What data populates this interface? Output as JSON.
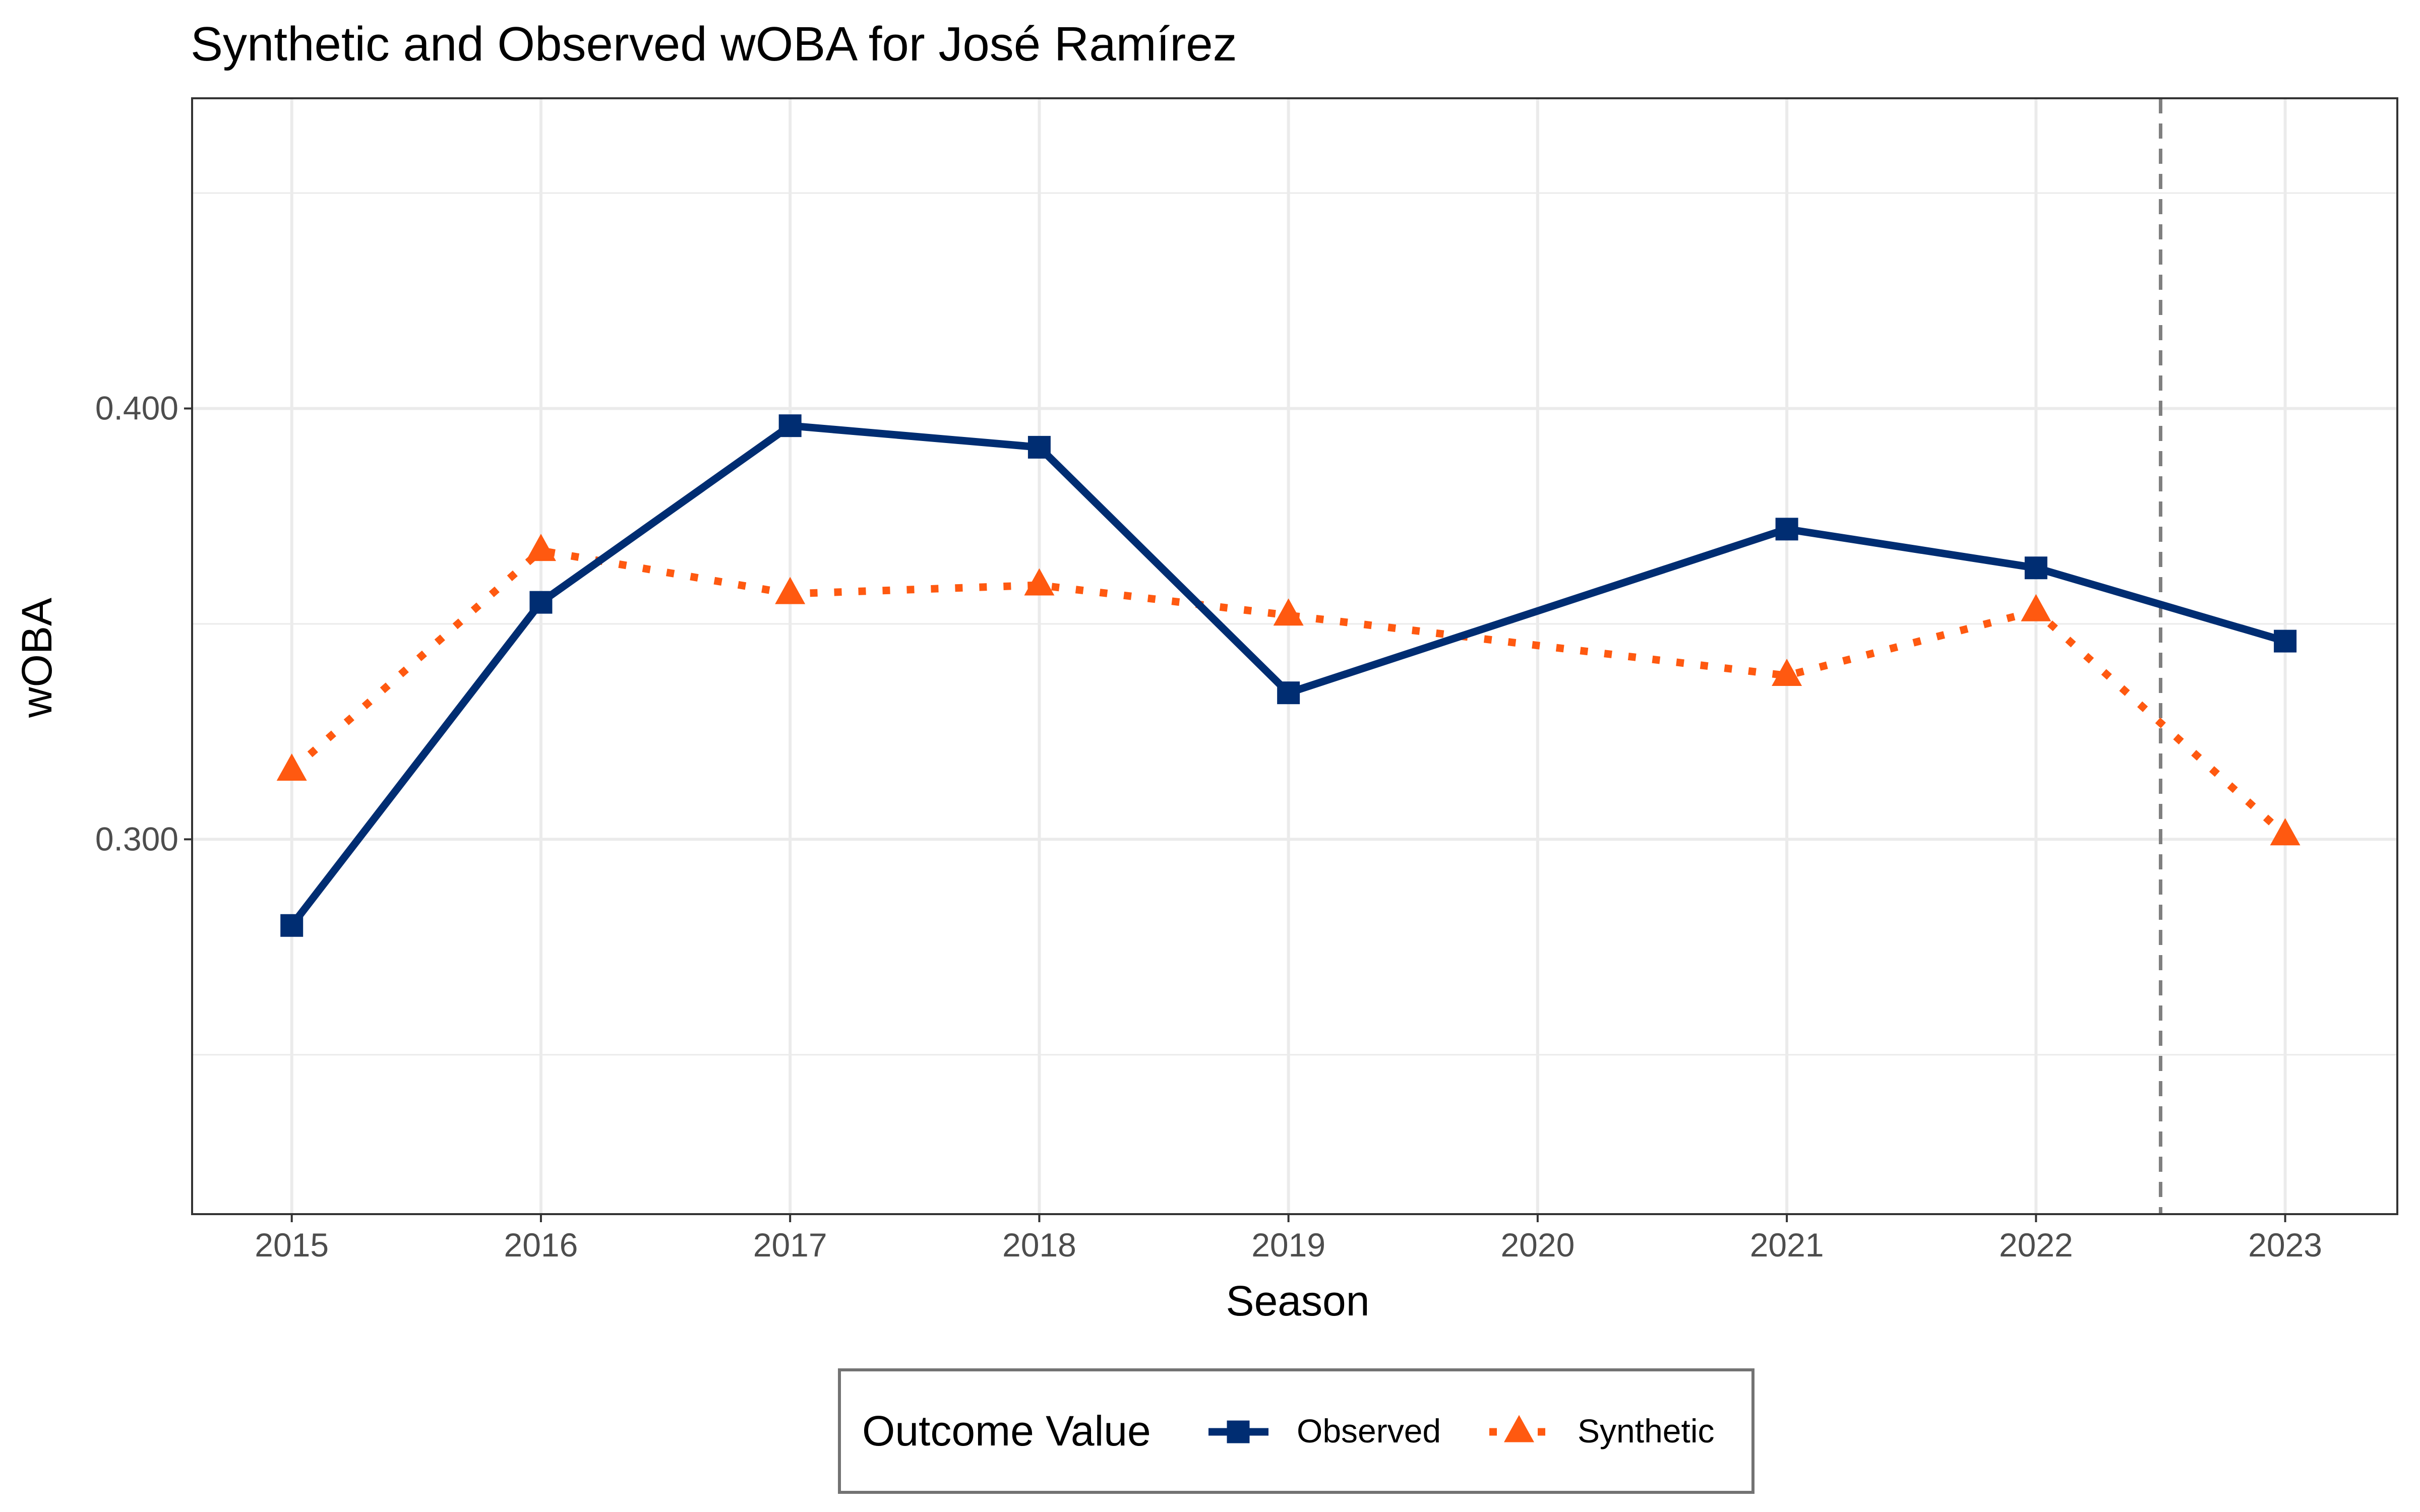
{
  "chart_data": {
    "type": "line",
    "title": "Synthetic and Observed wOBA for José Ramírez",
    "xlabel": "Season",
    "ylabel": "wOBA",
    "x": [
      2015,
      2016,
      2017,
      2018,
      2019,
      2020,
      2021,
      2022,
      2023
    ],
    "x_tick_labels": [
      "2015",
      "2016",
      "2017",
      "2018",
      "2019",
      "2020",
      "2021",
      "2022",
      "2023"
    ],
    "y_tick_labels": [
      "0.300",
      "0.400"
    ],
    "y_ticks": [
      0.3,
      0.4
    ],
    "ylim": [
      0.213,
      0.472
    ],
    "xlim": [
      2014.6,
      2023.45
    ],
    "grid": true,
    "treatment_line_x": 2022.5,
    "series": [
      {
        "name": "Observed",
        "color": "#002D72",
        "linestyle": "solid",
        "marker": "square",
        "x": [
          2015,
          2016,
          2017,
          2018,
          2019,
          2021,
          2022,
          2023
        ],
        "values": [
          0.28,
          0.355,
          0.396,
          0.391,
          0.334,
          0.372,
          0.363,
          0.346
        ]
      },
      {
        "name": "Synthetic",
        "color": "#FF5910",
        "linestyle": "dotted",
        "marker": "triangle",
        "x": [
          2015,
          2016,
          2017,
          2018,
          2019,
          2021,
          2022,
          2023
        ],
        "values": [
          0.316,
          0.367,
          0.357,
          0.359,
          0.352,
          0.338,
          0.353,
          0.301
        ]
      }
    ],
    "legend": {
      "title": "Outcome Value",
      "position": "bottom"
    }
  }
}
